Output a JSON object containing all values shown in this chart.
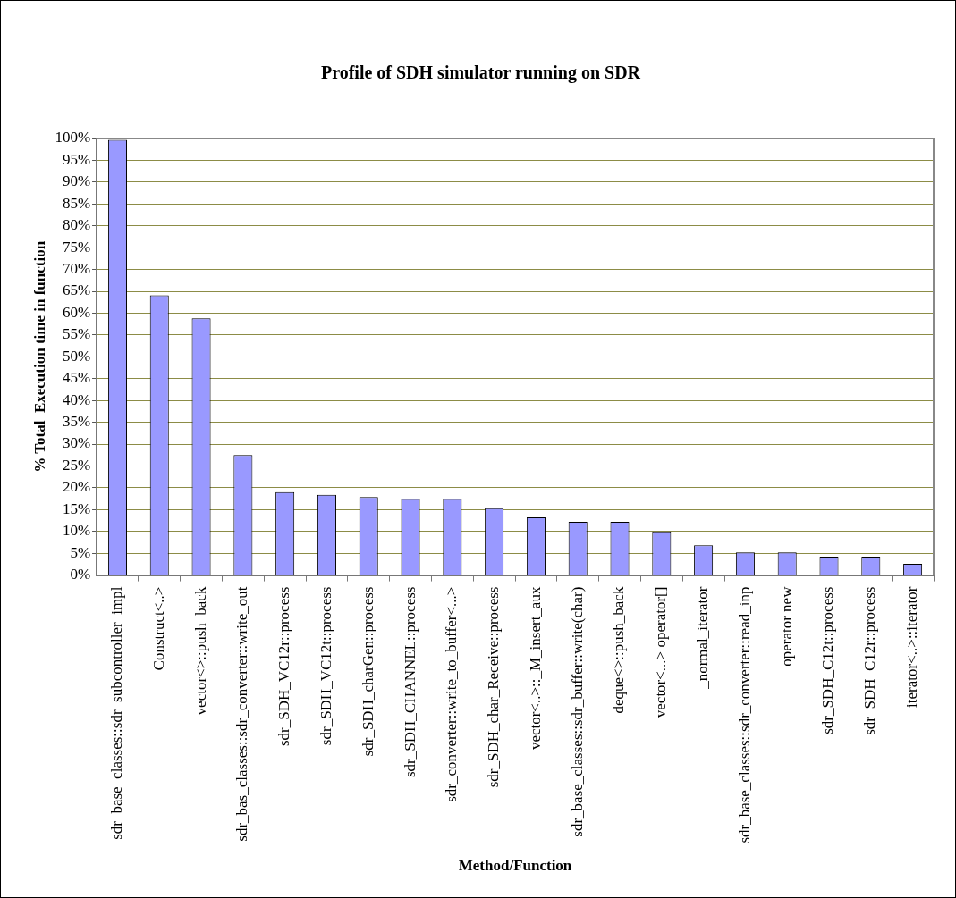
{
  "chart_data": {
    "type": "bar",
    "title": "Profile of SDH simulator running on SDR",
    "xlabel": "Method/Function",
    "ylabel": "% Total  Execution time in function",
    "categories": [
      "sdr_base_classes::sdr_subcontroller_impl",
      "Construct<..>",
      "vector<>::push_back",
      "sdr_bas_classes::sdr_converter::write_out",
      "sdr_SDH_VC12r::process",
      "sdr_SDH_VC12t::process",
      "sdr_SDH_charGen::process",
      "sdr_SDH_CHANNEL::process",
      "sdr_converter::write_to_buffer<...>",
      "sdr_SDH_char_Receive::process",
      "vector<..>::_M_insert_aux",
      "sdr_base_classes::sdr_buffer::write(char)",
      "deque<>::push_back",
      "vector<...> operator[]",
      "_normal_iterator",
      "sdr_base_classes::sdr_converter::read_inp",
      "operator new",
      "sdr_SDH_C12t::process",
      "sdr_SDH_C12r::process",
      "iterator<..>::iterator"
    ],
    "values": [
      99.7,
      64.1,
      58.8,
      27.5,
      19.0,
      18.4,
      17.9,
      17.4,
      17.4,
      15.3,
      13.2,
      12.2,
      12.2,
      10.0,
      6.8,
      5.2,
      5.2,
      4.2,
      4.2,
      2.6
    ],
    "color": "#9999ff",
    "ylim": [
      0,
      100
    ],
    "yticks": [
      {
        "value": 0,
        "label": "0%"
      },
      {
        "value": 5,
        "label": "5%"
      },
      {
        "value": 10,
        "label": "10%"
      },
      {
        "value": 15,
        "label": "15%"
      },
      {
        "value": 20,
        "label": "20%"
      },
      {
        "value": 25,
        "label": "25%"
      },
      {
        "value": 30,
        "label": "30%"
      },
      {
        "value": 35,
        "label": "35%"
      },
      {
        "value": 40,
        "label": "40%"
      },
      {
        "value": 45,
        "label": "45%"
      },
      {
        "value": 50,
        "label": "50%"
      },
      {
        "value": 55,
        "label": "55%"
      },
      {
        "value": 60,
        "label": "60%"
      },
      {
        "value": 65,
        "label": "65%"
      },
      {
        "value": 70,
        "label": "70%"
      },
      {
        "value": 75,
        "label": "75%"
      },
      {
        "value": 80,
        "label": "80%"
      },
      {
        "value": 85,
        "label": "85%"
      },
      {
        "value": 90,
        "label": "90%"
      },
      {
        "value": 95,
        "label": "95%"
      },
      {
        "value": 100,
        "label": "100%"
      }
    ],
    "grid": "y",
    "legend": false
  }
}
